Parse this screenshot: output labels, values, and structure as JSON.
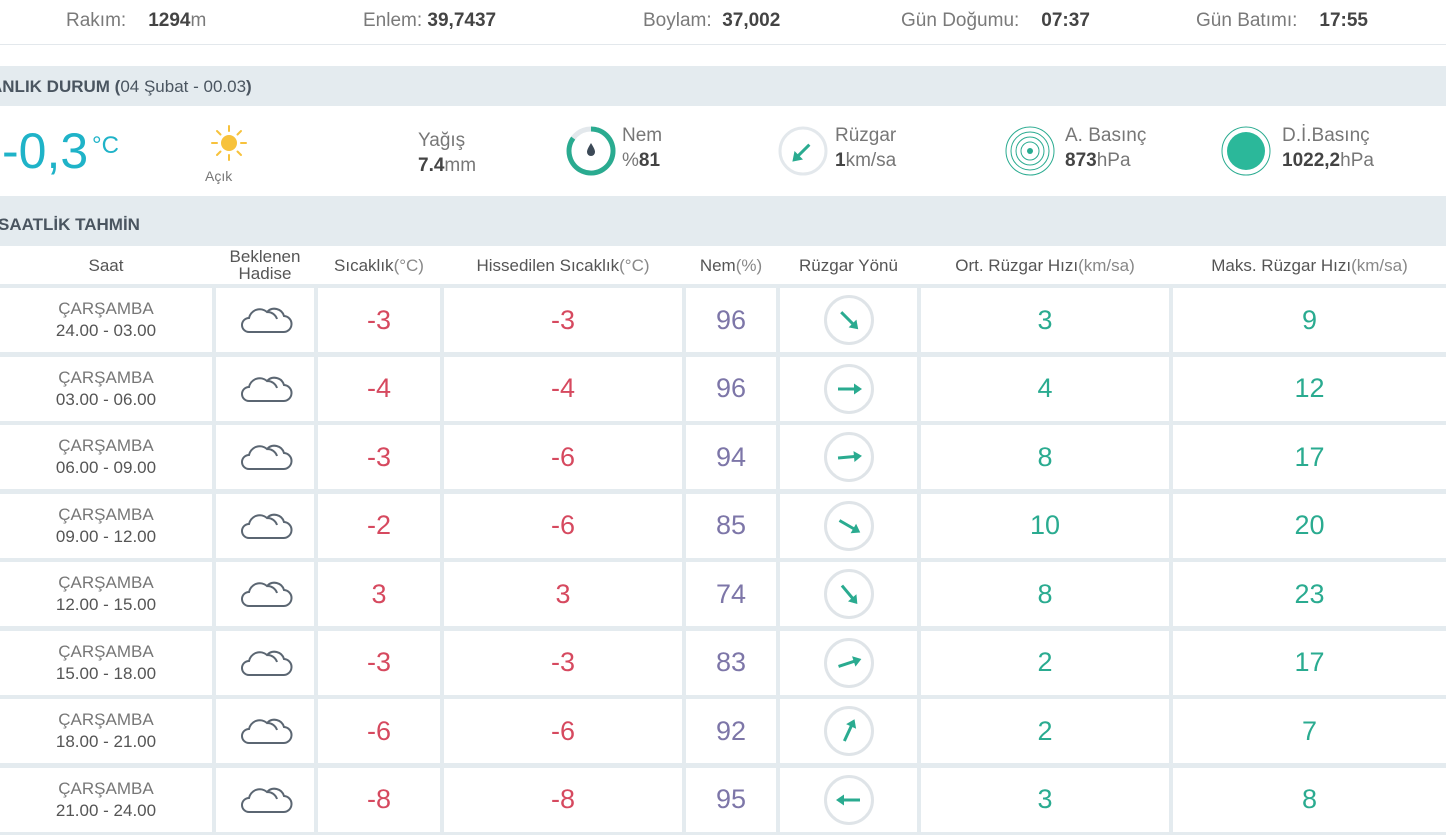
{
  "top": {
    "altitude": {
      "label": "Rakım:",
      "value": "1294",
      "unit": "m"
    },
    "latitude": {
      "label": "Enlem:",
      "value": "39,7437"
    },
    "longitude": {
      "label": "Boylam:",
      "value": "37,002"
    },
    "sunrise": {
      "label": "Gün Doğumu:",
      "value": "07:37"
    },
    "sunset": {
      "label": "Gün Batımı:",
      "value": "17:55"
    }
  },
  "current": {
    "header": {
      "title": "ANLIK DURUM (",
      "date": "04 Şubat - 00.03",
      "close": ")"
    },
    "temp": "-0,3",
    "temp_unit": "°C",
    "condition": "Açık",
    "precip": {
      "label": "Yağış",
      "value": "7.4",
      "unit": "mm"
    },
    "humidity": {
      "label": "Nem",
      "prefix": "%",
      "value": "81"
    },
    "wind": {
      "label": "Rüzgar",
      "value": "1",
      "unit": "km/sa"
    },
    "pressure": {
      "label": "A. Basınç",
      "value": "873",
      "unit": "hPa"
    },
    "sea_pressure": {
      "label": "D.İ.Basınç",
      "value": "1022,2",
      "unit": "hPa"
    }
  },
  "hourly": {
    "title": "SAATLİK TAHMİN",
    "headers": {
      "time": "Saat",
      "event_1": "Beklenen",
      "event_2": "Hadise",
      "temp": "Sıcaklık",
      "temp_u": " (°C)",
      "feels": "Hissedilen Sıcaklık",
      "feels_u": " (°C)",
      "hum": "Nem",
      "hum_u": " (%)",
      "dir": "Rüzgar Yönü",
      "avg": "Ort. Rüzgar Hızı",
      "avg_u": " (km/sa)",
      "max": "Maks. Rüzgar Hızı",
      "max_u": " (km/sa)"
    },
    "rows": [
      {
        "day": "ÇARŞAMBA",
        "time": "24.00 - 03.00",
        "temp": "-3",
        "feels": "-3",
        "hum": "96",
        "dir_deg": 135,
        "avg": "3",
        "max": "9"
      },
      {
        "day": "ÇARŞAMBA",
        "time": "03.00 - 06.00",
        "temp": "-4",
        "feels": "-4",
        "hum": "96",
        "dir_deg": 90,
        "avg": "4",
        "max": "12"
      },
      {
        "day": "ÇARŞAMBA",
        "time": "06.00 - 09.00",
        "temp": "-3",
        "feels": "-6",
        "hum": "94",
        "dir_deg": 85,
        "avg": "8",
        "max": "17"
      },
      {
        "day": "ÇARŞAMBA",
        "time": "09.00 - 12.00",
        "temp": "-2",
        "feels": "-6",
        "hum": "85",
        "dir_deg": 120,
        "avg": "10",
        "max": "20"
      },
      {
        "day": "ÇARŞAMBA",
        "time": "12.00 - 15.00",
        "temp": "3",
        "feels": "3",
        "hum": "74",
        "dir_deg": 140,
        "avg": "8",
        "max": "23"
      },
      {
        "day": "ÇARŞAMBA",
        "time": "15.00 - 18.00",
        "temp": "-3",
        "feels": "-3",
        "hum": "83",
        "dir_deg": 72,
        "avg": "2",
        "max": "17"
      },
      {
        "day": "ÇARŞAMBA",
        "time": "18.00 - 21.00",
        "temp": "-6",
        "feels": "-6",
        "hum": "92",
        "dir_deg": 25,
        "avg": "2",
        "max": "7"
      },
      {
        "day": "ÇARŞAMBA",
        "time": "21.00 - 24.00",
        "temp": "-8",
        "feels": "-8",
        "hum": "95",
        "dir_deg": 270,
        "avg": "3",
        "max": "8"
      }
    ]
  }
}
